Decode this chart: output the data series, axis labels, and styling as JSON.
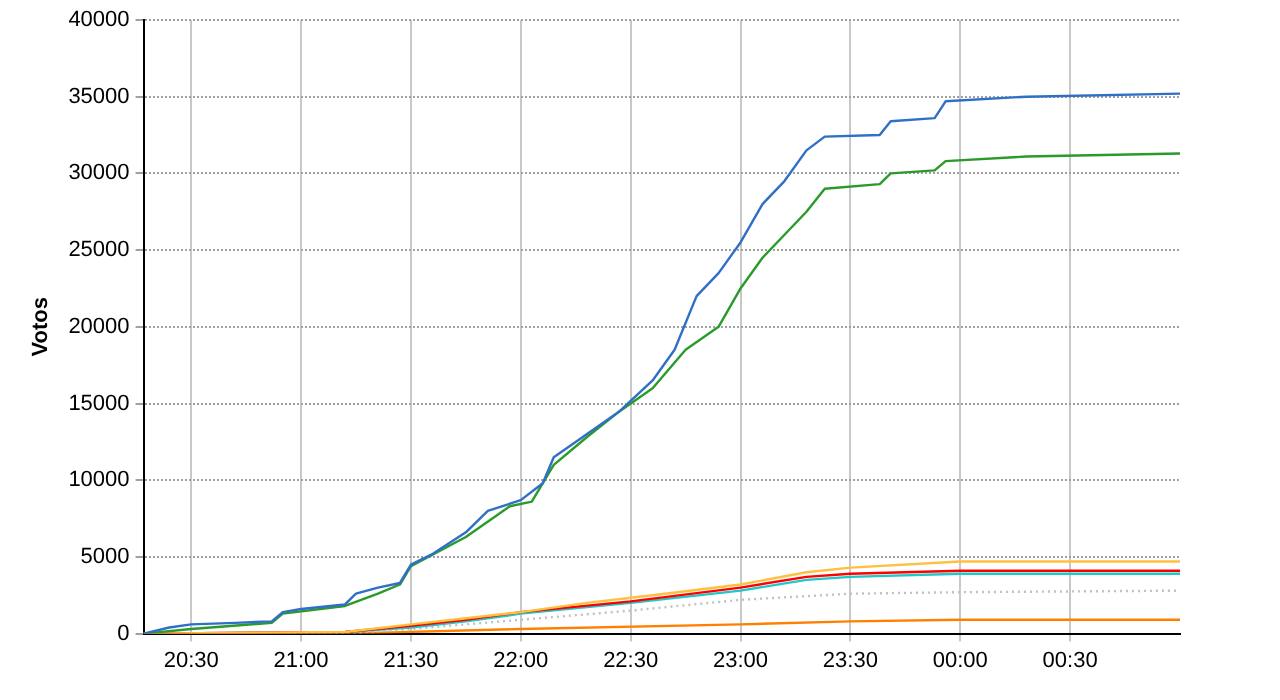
{
  "chart_data": {
    "type": "line",
    "ylabel": "Votos",
    "xlim": [
      "2000-01-01T20:17",
      "2000-01-02T01:00"
    ],
    "xticks": [
      {
        "value": "2000-01-01T20:30",
        "label": "20:30"
      },
      {
        "value": "2000-01-01T21:00",
        "label": "21:00"
      },
      {
        "value": "2000-01-01T21:30",
        "label": "21:30"
      },
      {
        "value": "2000-01-01T22:00",
        "label": "22:00"
      },
      {
        "value": "2000-01-01T22:30",
        "label": "22:30"
      },
      {
        "value": "2000-01-01T23:00",
        "label": "23:00"
      },
      {
        "value": "2000-01-01T23:30",
        "label": "23:30"
      },
      {
        "value": "2000-01-02T00:00",
        "label": "00:00"
      },
      {
        "value": "2000-01-02T00:30",
        "label": "00:30"
      }
    ],
    "ylim": [
      0,
      40000
    ],
    "yticks": [
      0,
      5000,
      10000,
      15000,
      20000,
      25000,
      30000,
      35000,
      40000
    ],
    "grid": true,
    "legend": false,
    "marker": "none",
    "series": [
      {
        "color": "#2f6fc8",
        "x": [
          "2000-01-01T20:17",
          "2000-01-01T20:24",
          "2000-01-01T20:30",
          "2000-01-01T20:42",
          "2000-01-01T20:52",
          "2000-01-01T20:55",
          "2000-01-01T21:00",
          "2000-01-01T21:12",
          "2000-01-01T21:15",
          "2000-01-01T21:21",
          "2000-01-01T21:27",
          "2000-01-01T21:30",
          "2000-01-01T21:36",
          "2000-01-01T21:45",
          "2000-01-01T21:51",
          "2000-01-01T22:00",
          "2000-01-01T22:06",
          "2000-01-01T22:09",
          "2000-01-01T22:18",
          "2000-01-01T22:27",
          "2000-01-01T22:36",
          "2000-01-01T22:42",
          "2000-01-01T22:48",
          "2000-01-01T22:54",
          "2000-01-01T23:00",
          "2000-01-01T23:06",
          "2000-01-01T23:12",
          "2000-01-01T23:18",
          "2000-01-01T23:23",
          "2000-01-01T23:38",
          "2000-01-01T23:41",
          "2000-01-01T23:53",
          "2000-01-01T23:56",
          "2000-01-02T00:18",
          "2000-01-02T01:00"
        ],
        "values": [
          0,
          400,
          600,
          700,
          800,
          1400,
          1600,
          1900,
          2600,
          3000,
          3300,
          4500,
          5200,
          6600,
          8000,
          8700,
          9800,
          11500,
          13000,
          14500,
          16500,
          18500,
          22000,
          23500,
          25500,
          28000,
          29500,
          31500,
          32400,
          32500,
          33400,
          33600,
          34700,
          35000,
          35200
        ]
      },
      {
        "color": "#2a9a2a",
        "x": [
          "2000-01-01T20:17",
          "2000-01-01T20:30",
          "2000-01-01T20:52",
          "2000-01-01T20:55",
          "2000-01-01T21:12",
          "2000-01-01T21:21",
          "2000-01-01T21:27",
          "2000-01-01T21:30",
          "2000-01-01T21:45",
          "2000-01-01T21:57",
          "2000-01-01T22:03",
          "2000-01-01T22:09",
          "2000-01-01T22:18",
          "2000-01-01T22:27",
          "2000-01-01T22:36",
          "2000-01-01T22:45",
          "2000-01-01T22:54",
          "2000-01-01T23:00",
          "2000-01-01T23:06",
          "2000-01-01T23:12",
          "2000-01-01T23:18",
          "2000-01-01T23:23",
          "2000-01-01T23:38",
          "2000-01-01T23:41",
          "2000-01-01T23:53",
          "2000-01-01T23:56",
          "2000-01-02T00:18",
          "2000-01-02T01:00"
        ],
        "values": [
          0,
          300,
          700,
          1300,
          1800,
          2600,
          3200,
          4400,
          6300,
          8300,
          8600,
          11000,
          12800,
          14500,
          16000,
          18500,
          20000,
          22500,
          24500,
          26000,
          27500,
          29000,
          29300,
          30000,
          30200,
          30800,
          31100,
          31300
        ]
      },
      {
        "color": "#ffc040",
        "x": [
          "2000-01-01T20:17",
          "2000-01-01T21:12",
          "2000-01-01T21:30",
          "2000-01-01T21:45",
          "2000-01-01T22:00",
          "2000-01-01T22:18",
          "2000-01-01T22:36",
          "2000-01-01T23:00",
          "2000-01-01T23:18",
          "2000-01-01T23:30",
          "2000-01-02T00:00",
          "2000-01-02T01:00"
        ],
        "values": [
          0,
          100,
          600,
          1000,
          1400,
          2000,
          2500,
          3200,
          4000,
          4300,
          4700,
          4700
        ]
      },
      {
        "color": "#ff0000",
        "x": [
          "2000-01-01T20:17",
          "2000-01-01T21:12",
          "2000-01-01T21:30",
          "2000-01-01T21:45",
          "2000-01-01T22:00",
          "2000-01-01T22:30",
          "2000-01-01T23:00",
          "2000-01-01T23:18",
          "2000-01-01T23:30",
          "2000-01-02T00:00",
          "2000-01-02T01:00"
        ],
        "values": [
          0,
          100,
          500,
          900,
          1400,
          2100,
          3000,
          3700,
          3900,
          4100,
          4100
        ]
      },
      {
        "color": "#20c8c8",
        "x": [
          "2000-01-01T20:17",
          "2000-01-01T21:12",
          "2000-01-01T21:30",
          "2000-01-01T21:45",
          "2000-01-01T22:00",
          "2000-01-01T22:30",
          "2000-01-01T23:00",
          "2000-01-01T23:18",
          "2000-01-01T23:30",
          "2000-01-02T00:00",
          "2000-01-02T01:00"
        ],
        "values": [
          0,
          100,
          400,
          800,
          1300,
          2000,
          2800,
          3500,
          3700,
          3900,
          3900
        ]
      },
      {
        "color": "#c0c0c0",
        "line_style": "dotted",
        "x": [
          "2000-01-01T20:17",
          "2000-01-01T21:12",
          "2000-01-01T21:30",
          "2000-01-01T22:00",
          "2000-01-01T22:30",
          "2000-01-01T23:00",
          "2000-01-01T23:30",
          "2000-01-02T00:00",
          "2000-01-02T01:00"
        ],
        "values": [
          0,
          0,
          300,
          900,
          1500,
          2200,
          2600,
          2700,
          2800
        ]
      },
      {
        "color": "#ff8000",
        "x": [
          "2000-01-01T20:17",
          "2000-01-01T21:12",
          "2000-01-01T22:00",
          "2000-01-01T23:00",
          "2000-01-01T23:30",
          "2000-01-02T00:00",
          "2000-01-02T01:00"
        ],
        "values": [
          0,
          0,
          300,
          600,
          800,
          900,
          900
        ]
      }
    ]
  }
}
